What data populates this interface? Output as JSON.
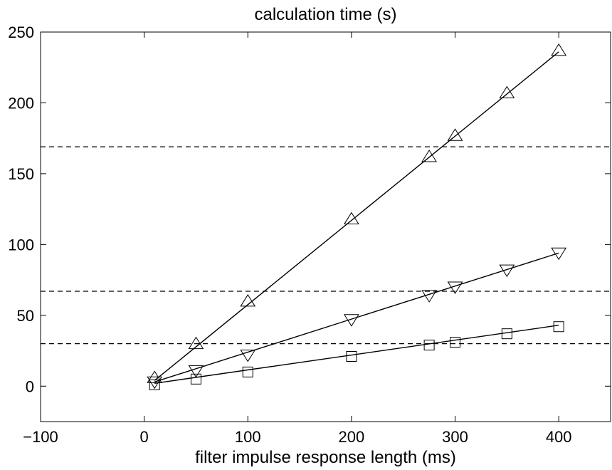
{
  "chart_data": {
    "type": "line",
    "title": "calculation time (s)",
    "xlabel": "filter impulse response length (ms)",
    "ylabel": "",
    "xlim": [
      -100,
      450
    ],
    "ylim": [
      -25,
      250
    ],
    "xticks": [
      -100,
      0,
      100,
      200,
      300,
      400
    ],
    "xtick_labels": [
      "−100",
      "0",
      "100",
      "200",
      "300",
      "400"
    ],
    "yticks": [
      0,
      50,
      100,
      150,
      200,
      250
    ],
    "ytick_labels": [
      "0",
      "50",
      "100",
      "150",
      "200",
      "250"
    ],
    "grid": false,
    "legend": "none",
    "series": [
      {
        "marker": "triangle-up",
        "line_color": "#000000",
        "x": [
          10,
          50,
          100,
          200,
          275,
          300,
          350,
          400
        ],
        "y": [
          6,
          30,
          60,
          118,
          162,
          177,
          207,
          237
        ],
        "fit": [
          [
            10,
            4
          ],
          [
            400,
            236
          ]
        ]
      },
      {
        "marker": "triangle-down",
        "line_color": "#000000",
        "x": [
          10,
          50,
          100,
          200,
          275,
          300,
          350,
          400
        ],
        "y": [
          3,
          11,
          22,
          47,
          64,
          70,
          82,
          94
        ],
        "fit": [
          [
            10,
            3
          ],
          [
            400,
            94
          ]
        ]
      },
      {
        "marker": "square",
        "line_color": "#000000",
        "x": [
          10,
          50,
          100,
          200,
          275,
          300,
          350,
          400
        ],
        "y": [
          1,
          5,
          10,
          21,
          29,
          31,
          37,
          42
        ],
        "fit": [
          [
            10,
            2
          ],
          [
            400,
            43
          ]
        ]
      }
    ],
    "reference_lines": [
      {
        "orientation": "horizontal",
        "y": 169,
        "style": "dashed"
      },
      {
        "orientation": "horizontal",
        "y": 67,
        "style": "dashed"
      },
      {
        "orientation": "horizontal",
        "y": 30,
        "style": "dashed"
      }
    ]
  }
}
